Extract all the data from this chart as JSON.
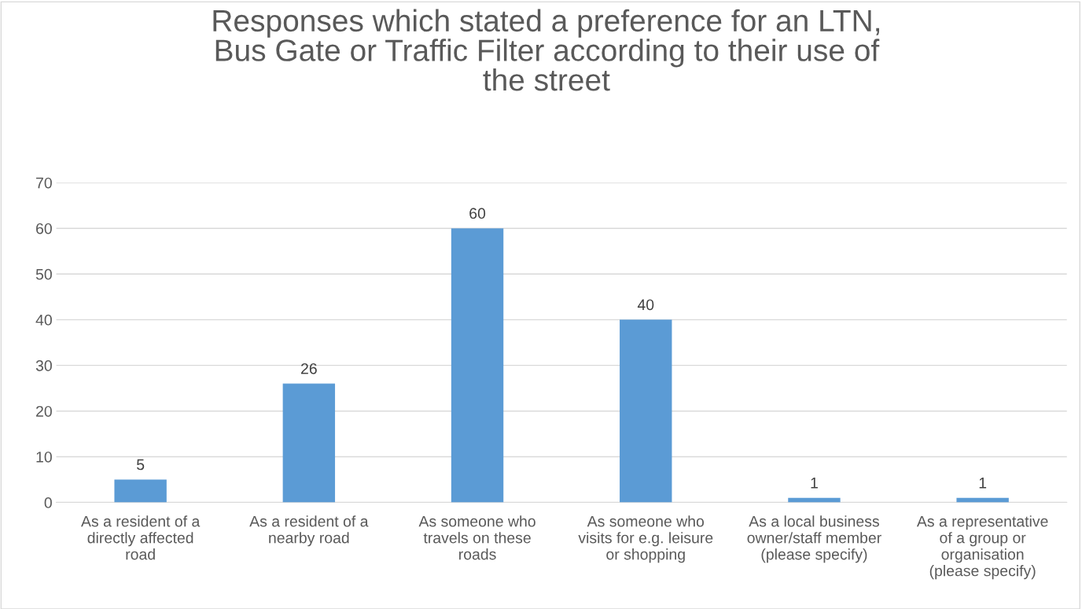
{
  "chart_data": {
    "type": "bar",
    "title": "Responses which stated a preference for an LTN,\nBus Gate or Traffic Filter according to their use of\nthe street",
    "categories": [
      "As a resident of a\ndirectly affected\nroad",
      "As a resident of a\nnearby road",
      "As someone who\ntravels on these\nroads",
      "As someone who\nvisits for e.g. leisure\nor shopping",
      "As a local business\nowner/staff member\n(please specify)",
      "As a representative\nof a group or\norganisation\n(please specify)"
    ],
    "values": [
      5,
      26,
      60,
      40,
      1,
      1
    ],
    "color": "#5b9bd5",
    "ylim": [
      0,
      70
    ],
    "yticks": [
      0,
      10,
      20,
      30,
      40,
      50,
      60,
      70
    ],
    "grid": "y",
    "data_labels": true
  }
}
